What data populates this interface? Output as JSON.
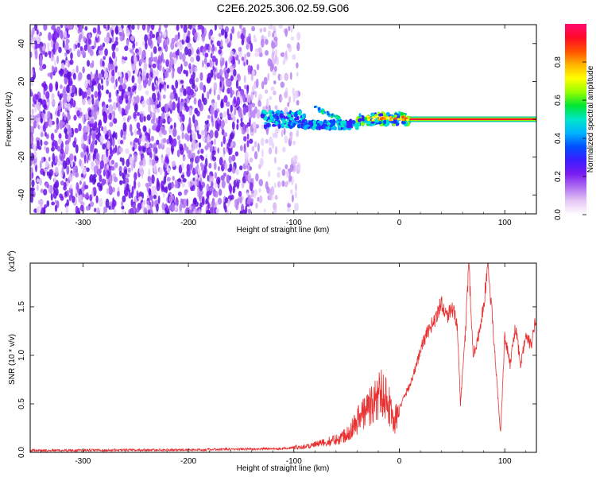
{
  "title": "C2E6.2025.306.02.59.G06",
  "chart_data": [
    {
      "type": "heatmap",
      "xlabel": "Height of straight line (km)",
      "ylabel": "Frequency (Hz)",
      "xlim": [
        -350,
        130
      ],
      "ylim": [
        -50,
        50
      ],
      "xticks": [
        -300,
        -200,
        -100,
        0,
        100
      ],
      "yticks": [
        -40,
        -20,
        0,
        20,
        40
      ],
      "grid": false,
      "colorbar": {
        "label": "Normalized spectral amplitude",
        "range": [
          0,
          1
        ],
        "ticks": [
          "0.0",
          "0.2",
          "0.4",
          "0.6",
          "0.8"
        ],
        "colors": [
          "#ffffff",
          "#e6c8f5",
          "#b070f0",
          "#7a1cf2",
          "#3a1cff",
          "#0050ff",
          "#00b4ff",
          "#00e6c8",
          "#00e632",
          "#96ff00",
          "#ffff00",
          "#ffb400",
          "#ff5000",
          "#ff0a28",
          "#ff0a6e"
        ]
      },
      "features": {
        "noise_region_x": [
          -350,
          -95
        ],
        "signal_start_x": -130,
        "carrier_x": [
          10,
          130
        ],
        "carrier_frequency": 0
      }
    },
    {
      "type": "line",
      "xlabel": "Height of straight line (km)",
      "ylabel": "SNR (10 * v/v)",
      "scale_label": "(x10",
      "scale_exponent": "4",
      "scale_suffix": ")",
      "xlim": [
        -350,
        130
      ],
      "ylim": [
        0,
        1.95
      ],
      "xticks": [
        -300,
        -200,
        -100,
        0,
        100
      ],
      "yticks": [
        "0.0",
        "0.5",
        "1.0",
        "1.5"
      ],
      "ytick_values": [
        0,
        0.5,
        1.0,
        1.5
      ],
      "color": "#e83030",
      "grid": false,
      "anchors": [
        [
          -350,
          0.02
        ],
        [
          -200,
          0.025
        ],
        [
          -110,
          0.04
        ],
        [
          -90,
          0.06
        ],
        [
          -70,
          0.1
        ],
        [
          -55,
          0.15
        ],
        [
          -45,
          0.25
        ],
        [
          -35,
          0.4
        ],
        [
          -25,
          0.5
        ],
        [
          -15,
          0.65
        ],
        [
          -10,
          0.5
        ],
        [
          -5,
          0.3
        ],
        [
          0,
          0.45
        ],
        [
          10,
          0.7
        ],
        [
          15,
          0.85
        ],
        [
          20,
          1.05
        ],
        [
          25,
          1.2
        ],
        [
          30,
          1.3
        ],
        [
          35,
          1.4
        ],
        [
          40,
          1.55
        ],
        [
          45,
          1.4
        ],
        [
          50,
          1.5
        ],
        [
          55,
          1.3
        ],
        [
          58,
          0.5
        ],
        [
          62,
          1.1
        ],
        [
          66,
          1.95
        ],
        [
          70,
          1.0
        ],
        [
          75,
          1.2
        ],
        [
          80,
          1.5
        ],
        [
          84,
          1.95
        ],
        [
          88,
          1.4
        ],
        [
          92,
          0.8
        ],
        [
          96,
          0.2
        ],
        [
          100,
          1.2
        ],
        [
          105,
          0.9
        ],
        [
          110,
          1.3
        ],
        [
          115,
          0.9
        ],
        [
          120,
          1.2
        ],
        [
          125,
          1.1
        ],
        [
          130,
          1.4
        ]
      ]
    }
  ]
}
